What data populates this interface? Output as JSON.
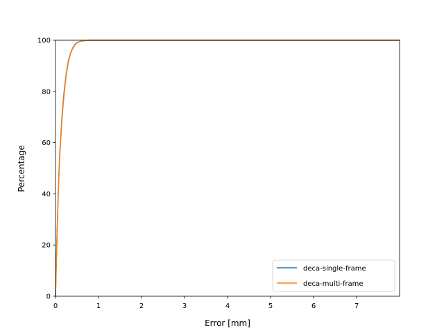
{
  "chart_data": {
    "type": "line",
    "xlabel": "Error [mm]",
    "ylabel": "Percentage",
    "xlim": [
      0,
      8
    ],
    "ylim": [
      0,
      100
    ],
    "xticks": [
      0,
      1,
      2,
      3,
      4,
      5,
      6,
      7
    ],
    "yticks": [
      0,
      20,
      40,
      60,
      80,
      100
    ],
    "grid": false,
    "legend_position": "lower-right",
    "series": [
      {
        "name": "deca-single-frame",
        "color": "#1f77b4",
        "x": [
          0,
          0.02,
          0.05,
          0.08,
          0.1,
          0.15,
          0.2,
          0.25,
          0.3,
          0.35,
          0.4,
          0.45,
          0.5,
          0.6,
          0.7,
          0.8,
          1.0,
          8.0
        ],
        "y": [
          0,
          14,
          33,
          48,
          56,
          70,
          80,
          87,
          92,
          95,
          97,
          98.3,
          99.1,
          99.7,
          99.9,
          100,
          100,
          100
        ]
      },
      {
        "name": "deca-multi-frame",
        "color": "#ff7f0e",
        "x": [
          0,
          0.02,
          0.05,
          0.08,
          0.1,
          0.15,
          0.2,
          0.25,
          0.3,
          0.35,
          0.4,
          0.45,
          0.5,
          0.6,
          0.7,
          0.8,
          1.0,
          8.0
        ],
        "y": [
          0,
          13,
          32,
          47,
          55,
          69,
          79,
          86.5,
          91.5,
          94.8,
          96.8,
          98.1,
          99,
          99.6,
          99.9,
          100,
          100,
          100
        ]
      }
    ]
  }
}
